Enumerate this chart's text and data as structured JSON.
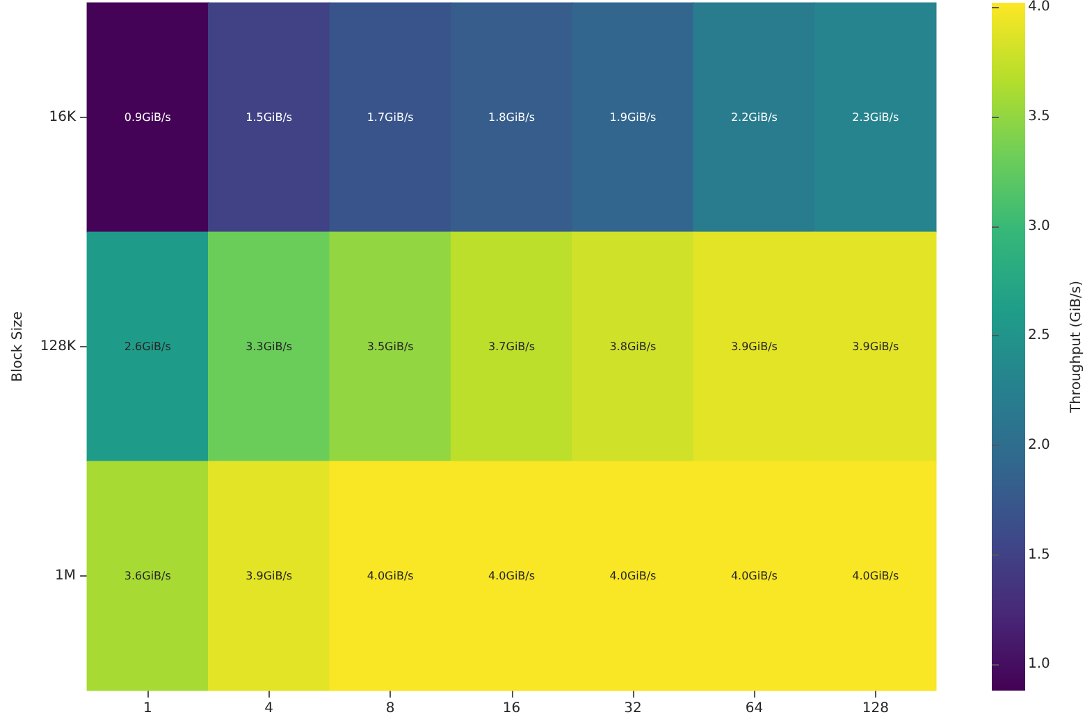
{
  "chart_data": {
    "type": "heatmap",
    "ylabel": "Block Size",
    "clabel": "Throughput (GiB/s)",
    "categories": [
      "1",
      "4",
      "8",
      "16",
      "32",
      "64",
      "128"
    ],
    "y_categories": [
      "16K",
      "128K",
      "1M"
    ],
    "cells": [
      [
        0.9,
        1.5,
        1.7,
        1.8,
        1.9,
        2.2,
        2.3
      ],
      [
        2.6,
        3.3,
        3.5,
        3.7,
        3.8,
        3.9,
        3.9
      ],
      [
        3.6,
        3.9,
        4.0,
        4.0,
        4.0,
        4.0,
        4.0
      ]
    ],
    "cell_labels": [
      [
        "0.9GiB/s",
        "1.5GiB/s",
        "1.7GiB/s",
        "1.8GiB/s",
        "1.9GiB/s",
        "2.2GiB/s",
        "2.3GiB/s"
      ],
      [
        "2.6GiB/s",
        "3.3GiB/s",
        "3.5GiB/s",
        "3.7GiB/s",
        "3.8GiB/s",
        "3.9GiB/s",
        "3.9GiB/s"
      ],
      [
        "3.6GiB/s",
        "3.9GiB/s",
        "4.0GiB/s",
        "4.0GiB/s",
        "4.0GiB/s",
        "4.0GiB/s",
        "4.0GiB/s"
      ]
    ],
    "clim": [
      0.88,
      4.02
    ],
    "cticks": [
      {
        "value": 1,
        "label": "1.0"
      },
      {
        "value": 1.5,
        "label": "1.5"
      },
      {
        "value": 2,
        "label": "2.0"
      },
      {
        "value": 2.5,
        "label": "2.5"
      },
      {
        "value": 3,
        "label": "3.0"
      },
      {
        "value": 3.5,
        "label": "3.5"
      },
      {
        "value": 4,
        "label": "4.0"
      }
    ]
  }
}
